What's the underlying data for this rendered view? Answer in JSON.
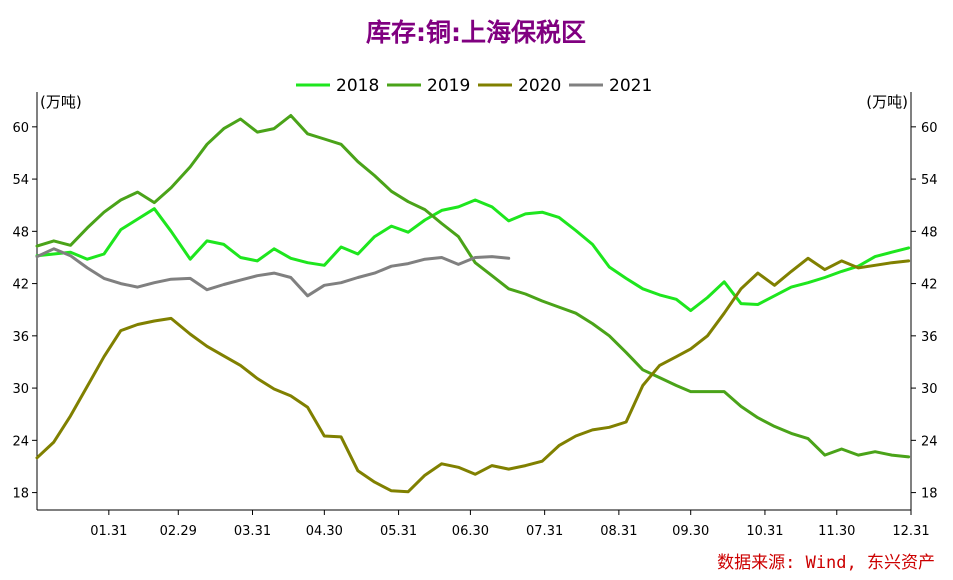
{
  "chart_data": {
    "type": "line",
    "title": "库存:铜:上海保税区",
    "title_color": "#800080",
    "left_unit": "(万吨)",
    "right_unit": "(万吨)",
    "source": "数据来源: Wind, 东兴资产",
    "source_color": "#cc0000",
    "ylim": [
      16,
      64
    ],
    "yticks": [
      18,
      24,
      30,
      36,
      42,
      48,
      54,
      60
    ],
    "x_range": [
      "01-01",
      "12-31"
    ],
    "xtick_labels": [
      "01.31",
      "02.29",
      "03.31",
      "04.30",
      "05.31",
      "06.30",
      "07.31",
      "08.31",
      "09.30",
      "10.31",
      "11.30",
      "12.31"
    ],
    "xtick_dates": [
      "01-31",
      "02-29",
      "03-31",
      "04-30",
      "05-31",
      "06-30",
      "07-31",
      "08-31",
      "09-30",
      "10-31",
      "11-30",
      "12-31"
    ],
    "legend_position": "top-center",
    "series": [
      {
        "name": "2018",
        "color": "#1ee61e",
        "points": [
          [
            "01-01",
            45.2
          ],
          [
            "01-08",
            45.4
          ],
          [
            "01-15",
            45.6
          ],
          [
            "01-22",
            44.8
          ],
          [
            "01-29",
            45.4
          ],
          [
            "02-05",
            48.2
          ],
          [
            "02-12",
            49.4
          ],
          [
            "02-19",
            50.6
          ],
          [
            "02-26",
            48.0
          ],
          [
            "03-05",
            44.8
          ],
          [
            "03-12",
            46.9
          ],
          [
            "03-19",
            46.5
          ],
          [
            "03-26",
            45.0
          ],
          [
            "04-02",
            44.6
          ],
          [
            "04-09",
            46.0
          ],
          [
            "04-16",
            44.9
          ],
          [
            "04-23",
            44.4
          ],
          [
            "04-30",
            44.1
          ],
          [
            "05-07",
            46.2
          ],
          [
            "05-14",
            45.4
          ],
          [
            "05-21",
            47.4
          ],
          [
            "05-28",
            48.6
          ],
          [
            "06-04",
            47.9
          ],
          [
            "06-11",
            49.3
          ],
          [
            "06-18",
            50.4
          ],
          [
            "06-25",
            50.8
          ],
          [
            "07-02",
            51.6
          ],
          [
            "07-09",
            50.8
          ],
          [
            "07-16",
            49.2
          ],
          [
            "07-23",
            50.0
          ],
          [
            "07-30",
            50.2
          ],
          [
            "08-06",
            49.6
          ],
          [
            "08-13",
            48.1
          ],
          [
            "08-20",
            46.5
          ],
          [
            "08-27",
            43.9
          ],
          [
            "09-03",
            42.6
          ],
          [
            "09-10",
            41.4
          ],
          [
            "09-17",
            40.7
          ],
          [
            "09-24",
            40.2
          ],
          [
            "09-30",
            38.9
          ],
          [
            "10-07",
            40.4
          ],
          [
            "10-14",
            42.2
          ],
          [
            "10-21",
            39.7
          ],
          [
            "10-28",
            39.6
          ],
          [
            "11-04",
            40.6
          ],
          [
            "11-11",
            41.6
          ],
          [
            "11-18",
            42.1
          ],
          [
            "11-25",
            42.7
          ],
          [
            "12-02",
            43.4
          ],
          [
            "12-09",
            44.0
          ],
          [
            "12-16",
            45.1
          ],
          [
            "12-23",
            45.6
          ],
          [
            "12-30",
            46.1
          ]
        ]
      },
      {
        "name": "2019",
        "color": "#4aa319",
        "points": [
          [
            "01-01",
            46.3
          ],
          [
            "01-08",
            46.9
          ],
          [
            "01-15",
            46.4
          ],
          [
            "01-22",
            48.4
          ],
          [
            "01-29",
            50.2
          ],
          [
            "02-05",
            51.6
          ],
          [
            "02-12",
            52.5
          ],
          [
            "02-19",
            51.3
          ],
          [
            "02-26",
            53.0
          ],
          [
            "03-05",
            55.4
          ],
          [
            "03-12",
            58.0
          ],
          [
            "03-19",
            59.8
          ],
          [
            "03-26",
            60.9
          ],
          [
            "04-02",
            59.4
          ],
          [
            "04-09",
            59.8
          ],
          [
            "04-16",
            61.3
          ],
          [
            "04-23",
            59.2
          ],
          [
            "04-30",
            58.6
          ],
          [
            "05-07",
            58.0
          ],
          [
            "05-14",
            56.0
          ],
          [
            "05-21",
            54.4
          ],
          [
            "05-28",
            52.6
          ],
          [
            "06-04",
            51.4
          ],
          [
            "06-11",
            50.5
          ],
          [
            "06-18",
            48.9
          ],
          [
            "06-25",
            47.4
          ],
          [
            "07-02",
            44.4
          ],
          [
            "07-09",
            42.9
          ],
          [
            "07-16",
            41.4
          ],
          [
            "07-23",
            40.8
          ],
          [
            "07-30",
            40.0
          ],
          [
            "08-06",
            39.3
          ],
          [
            "08-13",
            38.6
          ],
          [
            "08-20",
            37.4
          ],
          [
            "08-27",
            36.0
          ],
          [
            "09-03",
            34.1
          ],
          [
            "09-10",
            32.1
          ],
          [
            "09-17",
            31.2
          ],
          [
            "09-24",
            30.3
          ],
          [
            "09-30",
            29.6
          ],
          [
            "10-07",
            29.6
          ],
          [
            "10-14",
            29.6
          ],
          [
            "10-21",
            27.9
          ],
          [
            "10-28",
            26.6
          ],
          [
            "11-04",
            25.6
          ],
          [
            "11-11",
            24.8
          ],
          [
            "11-18",
            24.2
          ],
          [
            "11-25",
            22.3
          ],
          [
            "12-02",
            23.0
          ],
          [
            "12-09",
            22.3
          ],
          [
            "12-16",
            22.7
          ],
          [
            "12-23",
            22.3
          ],
          [
            "12-30",
            22.1
          ]
        ]
      },
      {
        "name": "2020",
        "color": "#808000",
        "points": [
          [
            "01-01",
            22.0
          ],
          [
            "01-08",
            23.8
          ],
          [
            "01-15",
            26.8
          ],
          [
            "01-22",
            30.2
          ],
          [
            "01-29",
            33.6
          ],
          [
            "02-05",
            36.6
          ],
          [
            "02-12",
            37.3
          ],
          [
            "02-19",
            37.7
          ],
          [
            "02-26",
            38.0
          ],
          [
            "03-05",
            36.2
          ],
          [
            "03-12",
            34.8
          ],
          [
            "03-19",
            33.7
          ],
          [
            "03-26",
            32.6
          ],
          [
            "04-02",
            31.1
          ],
          [
            "04-09",
            29.9
          ],
          [
            "04-16",
            29.1
          ],
          [
            "04-23",
            27.8
          ],
          [
            "04-30",
            24.5
          ],
          [
            "05-07",
            24.4
          ],
          [
            "05-14",
            20.5
          ],
          [
            "05-21",
            19.2
          ],
          [
            "05-28",
            18.2
          ],
          [
            "06-04",
            18.1
          ],
          [
            "06-11",
            20.0
          ],
          [
            "06-18",
            21.3
          ],
          [
            "06-25",
            20.9
          ],
          [
            "07-02",
            20.1
          ],
          [
            "07-09",
            21.1
          ],
          [
            "07-16",
            20.7
          ],
          [
            "07-23",
            21.1
          ],
          [
            "07-30",
            21.6
          ],
          [
            "08-06",
            23.4
          ],
          [
            "08-13",
            24.5
          ],
          [
            "08-20",
            25.2
          ],
          [
            "08-27",
            25.5
          ],
          [
            "09-03",
            26.1
          ],
          [
            "09-10",
            30.3
          ],
          [
            "09-17",
            32.6
          ],
          [
            "09-24",
            33.6
          ],
          [
            "09-30",
            34.5
          ],
          [
            "10-07",
            36.0
          ],
          [
            "10-14",
            38.6
          ],
          [
            "10-21",
            41.4
          ],
          [
            "10-28",
            43.2
          ],
          [
            "11-04",
            41.8
          ],
          [
            "11-11",
            43.4
          ],
          [
            "11-18",
            44.9
          ],
          [
            "11-25",
            43.6
          ],
          [
            "12-02",
            44.6
          ],
          [
            "12-09",
            43.8
          ],
          [
            "12-16",
            44.1
          ],
          [
            "12-23",
            44.4
          ],
          [
            "12-30",
            44.6
          ]
        ]
      },
      {
        "name": "2021",
        "color": "#808080",
        "points": [
          [
            "01-01",
            45.1
          ],
          [
            "01-08",
            46.0
          ],
          [
            "01-15",
            45.2
          ],
          [
            "01-22",
            43.8
          ],
          [
            "01-29",
            42.6
          ],
          [
            "02-05",
            42.0
          ],
          [
            "02-12",
            41.6
          ],
          [
            "02-19",
            42.1
          ],
          [
            "02-26",
            42.5
          ],
          [
            "03-05",
            42.6
          ],
          [
            "03-12",
            41.3
          ],
          [
            "03-19",
            41.9
          ],
          [
            "03-26",
            42.4
          ],
          [
            "04-02",
            42.9
          ],
          [
            "04-09",
            43.2
          ],
          [
            "04-16",
            42.7
          ],
          [
            "04-23",
            40.6
          ],
          [
            "04-30",
            41.8
          ],
          [
            "05-07",
            42.1
          ],
          [
            "05-14",
            42.7
          ],
          [
            "05-21",
            43.2
          ],
          [
            "05-28",
            44.0
          ],
          [
            "06-04",
            44.3
          ],
          [
            "06-11",
            44.8
          ],
          [
            "06-18",
            45.0
          ],
          [
            "06-25",
            44.2
          ],
          [
            "07-02",
            45.0
          ],
          [
            "07-09",
            45.1
          ],
          [
            "07-16",
            44.9
          ]
        ]
      }
    ]
  }
}
